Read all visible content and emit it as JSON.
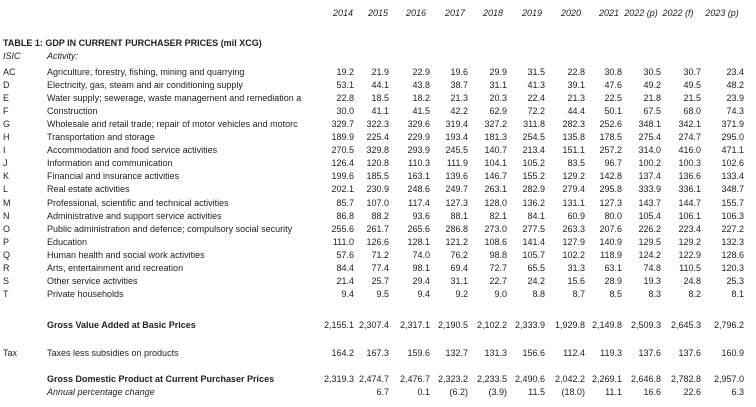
{
  "header": {
    "years": [
      "2014",
      "2015",
      "2016",
      "2017",
      "2018",
      "2019",
      "2020",
      "2021",
      "2022 (p)",
      "2022 (f)",
      "2023 (p)"
    ]
  },
  "table": {
    "title": "TABLE 1: GDP IN CURRENT PURCHASER PRICES (mil XCG)",
    "code_heading": "ISIC",
    "activity_heading": "Activity:",
    "rows": [
      {
        "code": "AC",
        "activity": "Agriculture, forestry, fishing, mining and quarrying",
        "values": [
          "19.2",
          "21.9",
          "22.9",
          "19.6",
          "29.9",
          "31.5",
          "22.8",
          "30.8",
          "30.5",
          "30.7",
          "23.4"
        ]
      },
      {
        "code": "D",
        "activity": "Electricity, gas, steam and air conditioning supply",
        "values": [
          "53.1",
          "44.1",
          "43.8",
          "38.7",
          "31.1",
          "41.3",
          "39.1",
          "47.6",
          "49.2",
          "49.5",
          "48.2"
        ]
      },
      {
        "code": "E",
        "activity": "Water supply; sewerage, waste management and remediation a",
        "values": [
          "22.8",
          "18.5",
          "18.2",
          "21.3",
          "20.3",
          "22.4",
          "21.3",
          "22.5",
          "21.8",
          "21.5",
          "23.9"
        ]
      },
      {
        "code": "F",
        "activity": "Construction",
        "values": [
          "30.0",
          "41.1",
          "41.5",
          "42.2",
          "62.9",
          "72.2",
          "44.4",
          "50.1",
          "67.5",
          "68.0",
          "74.3"
        ]
      },
      {
        "code": "G",
        "activity": "Wholesale and retail trade; repair of motor vehicles and motorc",
        "values": [
          "329.7",
          "322.3",
          "329.6",
          "319.4",
          "327.2",
          "311.8",
          "282.3",
          "252.6",
          "348.1",
          "342.1",
          "371.9"
        ]
      },
      {
        "code": "H",
        "activity": "Transportation and storage",
        "values": [
          "189.9",
          "225.4",
          "229.9",
          "193.4",
          "181.3",
          "254.5",
          "135.8",
          "178.5",
          "275.4",
          "274.7",
          "295.0"
        ]
      },
      {
        "code": "I",
        "activity": "Accommodation and food service activities",
        "values": [
          "270.5",
          "329.8",
          "293.9",
          "245.5",
          "140.7",
          "213.4",
          "151.1",
          "257.2",
          "314.0",
          "416.0",
          "471.1"
        ]
      },
      {
        "code": "J",
        "activity": "Information and communication",
        "values": [
          "126.4",
          "120.8",
          "110.3",
          "111.9",
          "104.1",
          "105.2",
          "83.5",
          "96.7",
          "100.2",
          "100.3",
          "102.6"
        ]
      },
      {
        "code": "K",
        "activity": "Financial and insurance activities",
        "values": [
          "199.6",
          "185.5",
          "163.1",
          "139.6",
          "146.7",
          "155.2",
          "129.2",
          "142.8",
          "137.4",
          "136.6",
          "133.4"
        ]
      },
      {
        "code": "L",
        "activity": "Real estate activities",
        "values": [
          "202.1",
          "230.9",
          "248.6",
          "249.7",
          "263.1",
          "282.9",
          "279.4",
          "295.8",
          "333.9",
          "336.1",
          "348.7"
        ]
      },
      {
        "code": "M",
        "activity": "Professional, scientific and technical activities",
        "values": [
          "85.7",
          "107.0",
          "117.4",
          "127.3",
          "128.0",
          "136.2",
          "131.1",
          "127.3",
          "143.7",
          "144.7",
          "155.7"
        ]
      },
      {
        "code": "N",
        "activity": "Administrative and support service activities",
        "values": [
          "86.8",
          "88.2",
          "93.6",
          "88.1",
          "82.1",
          "84.1",
          "60.9",
          "80.0",
          "105.4",
          "106.1",
          "106.3"
        ]
      },
      {
        "code": "O",
        "activity": "Public administration and defence; compulsory social security",
        "values": [
          "255.6",
          "261.7",
          "265.6",
          "286.8",
          "273.0",
          "277.5",
          "263.3",
          "207.6",
          "226.2",
          "223.4",
          "227.2"
        ]
      },
      {
        "code": "P",
        "activity": "Education",
        "values": [
          "111.0",
          "126.6",
          "128.1",
          "121.2",
          "108.6",
          "141.4",
          "127.9",
          "140.9",
          "129.5",
          "129.2",
          "132.3"
        ]
      },
      {
        "code": "Q",
        "activity": "Human health and social work activities",
        "values": [
          "57.6",
          "71.2",
          "74.0",
          "76.2",
          "98.8",
          "105.7",
          "102.2",
          "118.9",
          "124.2",
          "122.9",
          "128.6"
        ]
      },
      {
        "code": "R",
        "activity": "Arts, entertainment and recreation",
        "values": [
          "84.4",
          "77.4",
          "98.1",
          "69.4",
          "72.7",
          "65.5",
          "31.3",
          "63.1",
          "74.8",
          "110.5",
          "120.3"
        ]
      },
      {
        "code": "S",
        "activity": "Other service activities",
        "values": [
          "21.4",
          "25.7",
          "29.4",
          "31.1",
          "22.7",
          "24.2",
          "15.6",
          "28.9",
          "19.3",
          "24.8",
          "25.3"
        ]
      },
      {
        "code": "T",
        "activity": "Private households",
        "values": [
          "9.4",
          "9.5",
          "9.4",
          "9.2",
          "9.0",
          "8.8",
          "8.7",
          "8.5",
          "8.3",
          "8.2",
          "8.1"
        ]
      }
    ],
    "gva": {
      "label": "Gross Value Added at Basic Prices",
      "values": [
        "2,155.1",
        "2,307.4",
        "2,317.1",
        "2,190.5",
        "2,102.2",
        "2,333.9",
        "1,929.8",
        "2,149.8",
        "2,509.3",
        "2,645.3",
        "2,796.2"
      ]
    },
    "tax": {
      "code": "Tax",
      "label": "Taxes less subsidies on products",
      "values": [
        "164.2",
        "167.3",
        "159.6",
        "132.7",
        "131.3",
        "156.6",
        "112.4",
        "119.3",
        "137.6",
        "137.6",
        "160.9"
      ]
    },
    "gdp": {
      "label": "Gross Domestic Product at Current Purchaser Prices",
      "values": [
        "2,319.3",
        "2,474.7",
        "2,476.7",
        "2,323.2",
        "2,233.5",
        "2,490.6",
        "2,042.2",
        "2,269.1",
        "2,646.8",
        "2,782.8",
        "2,957.0"
      ]
    },
    "change": {
      "label": "Annual percentage change",
      "values": [
        null,
        "6.7",
        "0.1",
        "(6.2)",
        "(3.9)",
        "11.5",
        "(18.0)",
        "11.1",
        "16.6",
        "22.6",
        "6.3"
      ]
    }
  }
}
